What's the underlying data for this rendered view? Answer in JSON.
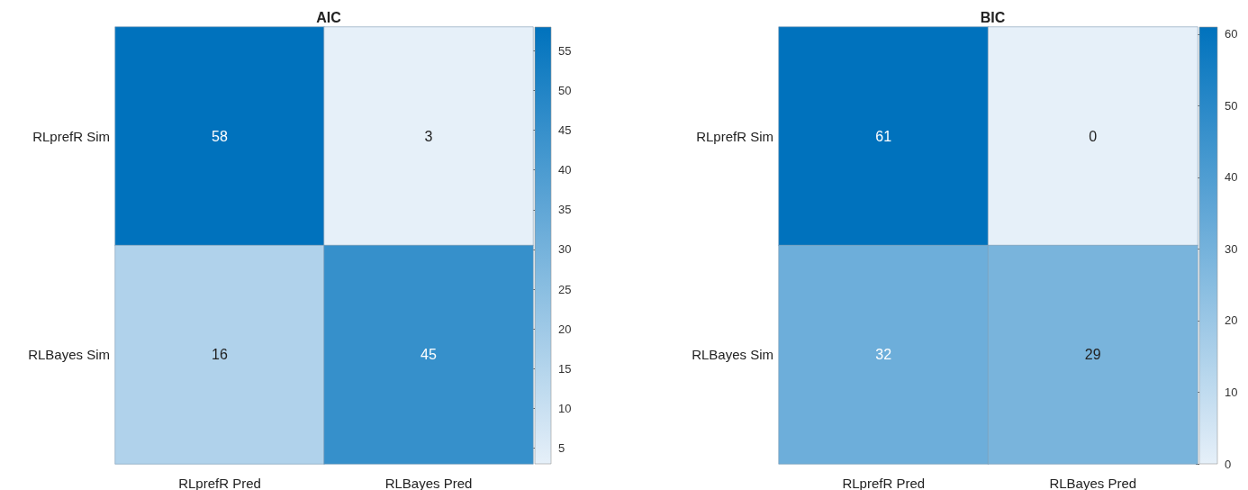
{
  "chart_data": [
    {
      "type": "heatmap",
      "title": "AIC",
      "categories": [
        "RLprefR Pred",
        "RLBayes Pred"
      ],
      "y_categories": [
        "RLprefR Sim",
        "RLBayes Sim"
      ],
      "cells": [
        [
          58,
          3
        ],
        [
          16,
          45
        ]
      ],
      "data_labels": true,
      "clim": [
        3,
        58
      ],
      "cticks": [
        5,
        10,
        15,
        20,
        25,
        30,
        35,
        40,
        45,
        50,
        55
      ]
    },
    {
      "type": "heatmap",
      "title": "BIC",
      "categories": [
        "RLprefR Pred",
        "RLBayes Pred"
      ],
      "y_categories": [
        "RLprefR Sim",
        "RLBayes Sim"
      ],
      "cells": [
        [
          61,
          0
        ],
        [
          32,
          29
        ]
      ],
      "data_labels": true,
      "clim": [
        0,
        61
      ],
      "cticks": [
        0,
        10,
        20,
        30,
        40,
        50,
        60
      ]
    }
  ]
}
